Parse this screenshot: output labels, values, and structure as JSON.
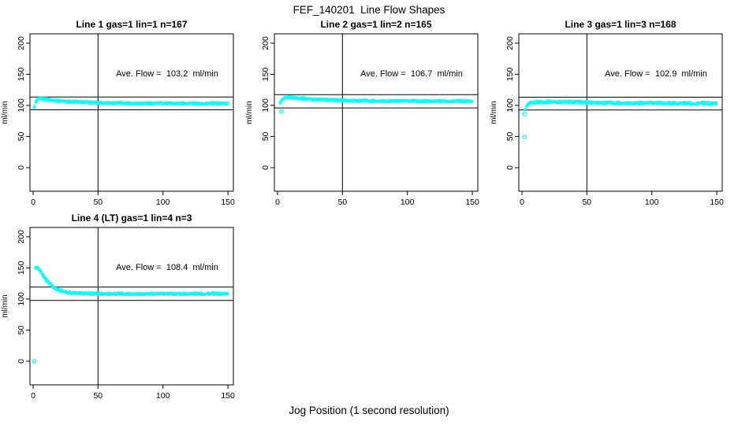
{
  "page": {
    "title": "FEF_140201  Line Flow Shapes",
    "xlabel": "Jog Position (1 second resolution)"
  },
  "colors": {
    "point": "#00ffff",
    "axis": "#000000",
    "background": "#ffffff"
  },
  "chart_data": [
    {
      "type": "scatter",
      "title": "Line 1 gas=1 lin=1 n=167",
      "line": 1,
      "gas": 1,
      "lin": 1,
      "n": 167,
      "annotation": "Ave. Flow =  103.2  ml/min",
      "ave_flow": 103.2,
      "ylabel": "ml/min",
      "x_ticks": [
        0,
        50,
        100,
        150
      ],
      "y_ticks": [
        0,
        50,
        100,
        150,
        200
      ],
      "xlim": [
        -2.4,
        154.2
      ],
      "ylim": [
        -38,
        215
      ],
      "vline_x": 50,
      "hlines": [
        113.5,
        92.9
      ],
      "band_halfwidth": 1.6,
      "trend": [
        [
          1,
          95
        ],
        [
          2,
          104
        ],
        [
          3,
          107.5
        ],
        [
          4,
          109.5
        ],
        [
          6,
          110.5
        ],
        [
          10,
          109.8
        ],
        [
          15,
          108.5
        ],
        [
          25,
          106.5
        ],
        [
          40,
          104.8
        ],
        [
          60,
          103.8
        ],
        [
          90,
          103.2
        ],
        [
          150,
          103
        ]
      ],
      "outliers": []
    },
    {
      "type": "scatter",
      "title": "Line 2 gas=1 lin=2 n=165",
      "line": 2,
      "gas": 1,
      "lin": 2,
      "n": 165,
      "annotation": "Ave. Flow =  106.7  ml/min",
      "ave_flow": 106.7,
      "ylabel": "ml/min",
      "x_ticks": [
        0,
        50,
        100,
        150
      ],
      "y_ticks": [
        0,
        50,
        100,
        150,
        200
      ],
      "xlim": [
        -2.4,
        154.2
      ],
      "ylim": [
        -38,
        215
      ],
      "vline_x": 50,
      "hlines": [
        117.4,
        96.0
      ],
      "band_halfwidth": 1.6,
      "trend": [
        [
          2,
          103.5
        ],
        [
          3,
          106.5
        ],
        [
          4,
          109
        ],
        [
          6,
          111.5
        ],
        [
          9,
          113
        ],
        [
          15,
          112
        ],
        [
          25,
          110.2
        ],
        [
          40,
          108.5
        ],
        [
          60,
          107.5
        ],
        [
          90,
          107
        ],
        [
          150,
          106.6
        ]
      ],
      "outliers": [
        [
          3,
          90
        ]
      ]
    },
    {
      "type": "scatter",
      "title": "Line 3 gas=1 lin=3 n=168",
      "line": 3,
      "gas": 1,
      "lin": 3,
      "n": 168,
      "annotation": "Ave. Flow =  102.9  ml/min",
      "ave_flow": 102.9,
      "ylabel": "ml/min",
      "x_ticks": [
        0,
        50,
        100,
        150
      ],
      "y_ticks": [
        0,
        50,
        100,
        150,
        200
      ],
      "xlim": [
        -2.4,
        154.2
      ],
      "ylim": [
        -38,
        215
      ],
      "vline_x": 50,
      "hlines": [
        113.2,
        92.6
      ],
      "band_halfwidth": 2.0,
      "trend": [
        [
          2.5,
          92
        ],
        [
          3,
          95
        ],
        [
          4,
          99.5
        ],
        [
          6,
          102.5
        ],
        [
          9,
          104.5
        ],
        [
          15,
          105.5
        ],
        [
          25,
          105.8
        ],
        [
          40,
          105
        ],
        [
          70,
          104
        ],
        [
          110,
          103.5
        ],
        [
          150,
          103
        ]
      ],
      "outliers": [
        [
          2,
          49
        ],
        [
          2,
          86
        ]
      ]
    },
    {
      "type": "scatter",
      "title": "Line 4 (LT) gas=1 lin=4 n=3",
      "line": 4,
      "gas": 1,
      "lin": 4,
      "n": 3,
      "annotation": "Ave. Flow =  108.4  ml/min",
      "ave_flow": 108.4,
      "ylabel": "ml/min",
      "x_ticks": [
        0,
        50,
        100,
        150
      ],
      "y_ticks": [
        0,
        50,
        100,
        150,
        200
      ],
      "xlim": [
        -2.4,
        154.2
      ],
      "ylim": [
        -38,
        215
      ],
      "vline_x": 50,
      "hlines": [
        119.2,
        97.6
      ],
      "band_halfwidth": 1.5,
      "trend": [
        [
          2,
          150
        ],
        [
          3,
          150.5
        ],
        [
          4,
          148.5
        ],
        [
          5,
          145.5
        ],
        [
          6,
          142.5
        ],
        [
          8,
          136.5
        ],
        [
          10,
          131
        ],
        [
          12,
          126.5
        ],
        [
          14,
          122.5
        ],
        [
          16,
          119
        ],
        [
          18,
          116.5
        ],
        [
          20,
          114.5
        ],
        [
          23,
          112.5
        ],
        [
          26,
          111
        ],
        [
          30,
          109.8
        ],
        [
          36,
          109
        ],
        [
          45,
          108.6
        ],
        [
          60,
          108.4
        ],
        [
          100,
          108.3
        ],
        [
          150,
          108.6
        ]
      ],
      "outliers": [
        [
          1,
          0
        ]
      ]
    }
  ]
}
